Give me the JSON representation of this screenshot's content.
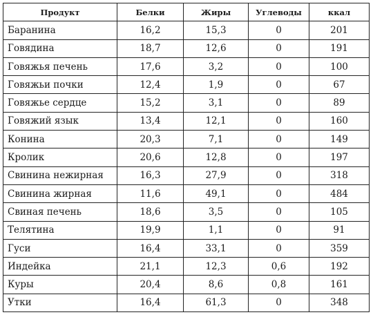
{
  "table": {
    "headers": {
      "product": "Продукт",
      "protein": "Белки",
      "fat": "Жиры",
      "carbs": "Углеводы",
      "kcal": "ккал"
    },
    "rows": [
      {
        "name": "Баранина",
        "protein": "16,2",
        "fat": "15,3",
        "carbs": "0",
        "kcal": "201"
      },
      {
        "name": "Говядина",
        "protein": "18,7",
        "fat": "12,6",
        "carbs": "0",
        "kcal": "191"
      },
      {
        "name": "Говяжья печень",
        "protein": "17,6",
        "fat": "3,2",
        "carbs": "0",
        "kcal": "100"
      },
      {
        "name": "Говяжьи почки",
        "protein": "12,4",
        "fat": "1,9",
        "carbs": "0",
        "kcal": "67"
      },
      {
        "name": "Говяжье сердце",
        "protein": "15,2",
        "fat": "3,1",
        "carbs": "0",
        "kcal": "89"
      },
      {
        "name": "Говяжий язык",
        "protein": "13,4",
        "fat": "12,1",
        "carbs": "0",
        "kcal": "160"
      },
      {
        "name": "Конина",
        "protein": "20,3",
        "fat": "7,1",
        "carbs": "0",
        "kcal": "149"
      },
      {
        "name": "Кролик",
        "protein": "20,6",
        "fat": "12,8",
        "carbs": "0",
        "kcal": "197"
      },
      {
        "name": "Свинина нежирная",
        "protein": "16,3",
        "fat": "27,9",
        "carbs": "0",
        "kcal": "318"
      },
      {
        "name": "Свинина жирная",
        "protein": "11,6",
        "fat": "49,1",
        "carbs": "0",
        "kcal": "484"
      },
      {
        "name": "Свиная печень",
        "protein": "18,6",
        "fat": "3,5",
        "carbs": "0",
        "kcal": "105"
      },
      {
        "name": "Телятина",
        "protein": "19,9",
        "fat": "1,1",
        "carbs": "0",
        "kcal": "91"
      },
      {
        "name": "Гуси",
        "protein": "16,4",
        "fat": "33,1",
        "carbs": "0",
        "kcal": "359"
      },
      {
        "name": "Индейка",
        "protein": "21,1",
        "fat": "12,3",
        "carbs": "0,6",
        "kcal": "192"
      },
      {
        "name": "Куры",
        "protein": "20,4",
        "fat": "8,6",
        "carbs": "0,8",
        "kcal": "161"
      },
      {
        "name": "Утки",
        "protein": "16,4",
        "fat": "61,3",
        "carbs": "0",
        "kcal": "348"
      }
    ]
  }
}
